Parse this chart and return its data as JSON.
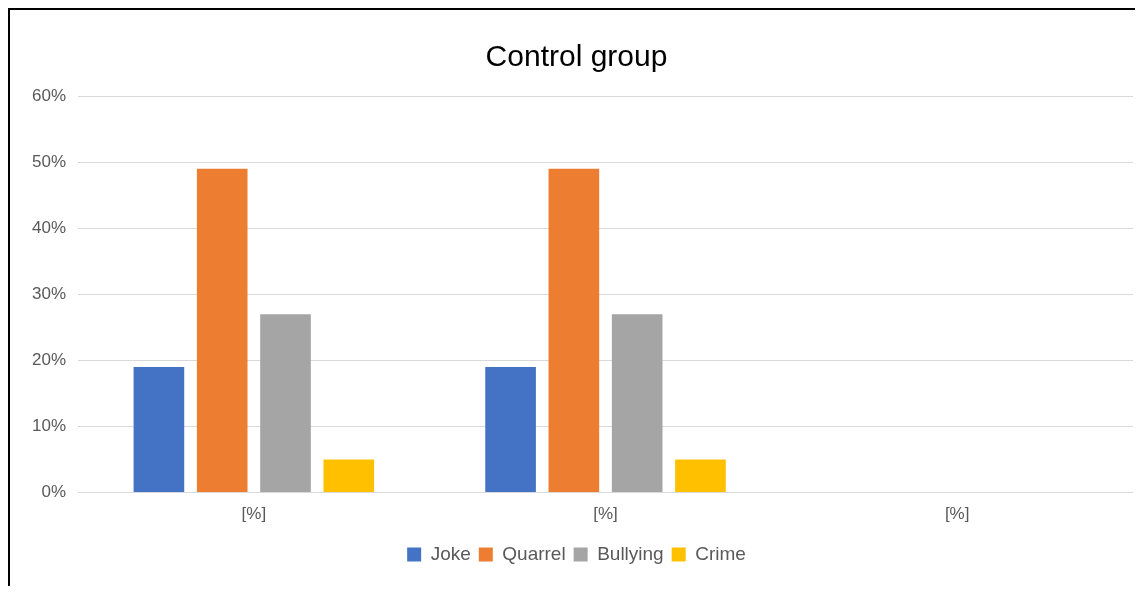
{
  "chart_data": {
    "type": "bar",
    "title": "Control group",
    "categories": [
      "[%]",
      "[%]",
      "[%]"
    ],
    "series": [
      {
        "name": "Joke",
        "color": "#4472c4",
        "values": [
          19,
          19,
          null
        ]
      },
      {
        "name": "Quarrel",
        "color": "#ed7d31",
        "values": [
          49,
          49,
          null
        ]
      },
      {
        "name": "Bullying",
        "color": "#a5a5a5",
        "values": [
          27,
          27,
          null
        ]
      },
      {
        "name": "Crime",
        "color": "#ffc000",
        "values": [
          5,
          5,
          null
        ]
      }
    ],
    "ylim": [
      0,
      60
    ],
    "yticks": [
      {
        "value": 0,
        "label": "0%"
      },
      {
        "value": 10,
        "label": "10%"
      },
      {
        "value": 20,
        "label": "20%"
      },
      {
        "value": 30,
        "label": "30%"
      },
      {
        "value": 40,
        "label": "40%"
      },
      {
        "value": 50,
        "label": "50%"
      },
      {
        "value": 60,
        "label": "60%"
      }
    ],
    "grid": "y",
    "legend": "bottom"
  }
}
